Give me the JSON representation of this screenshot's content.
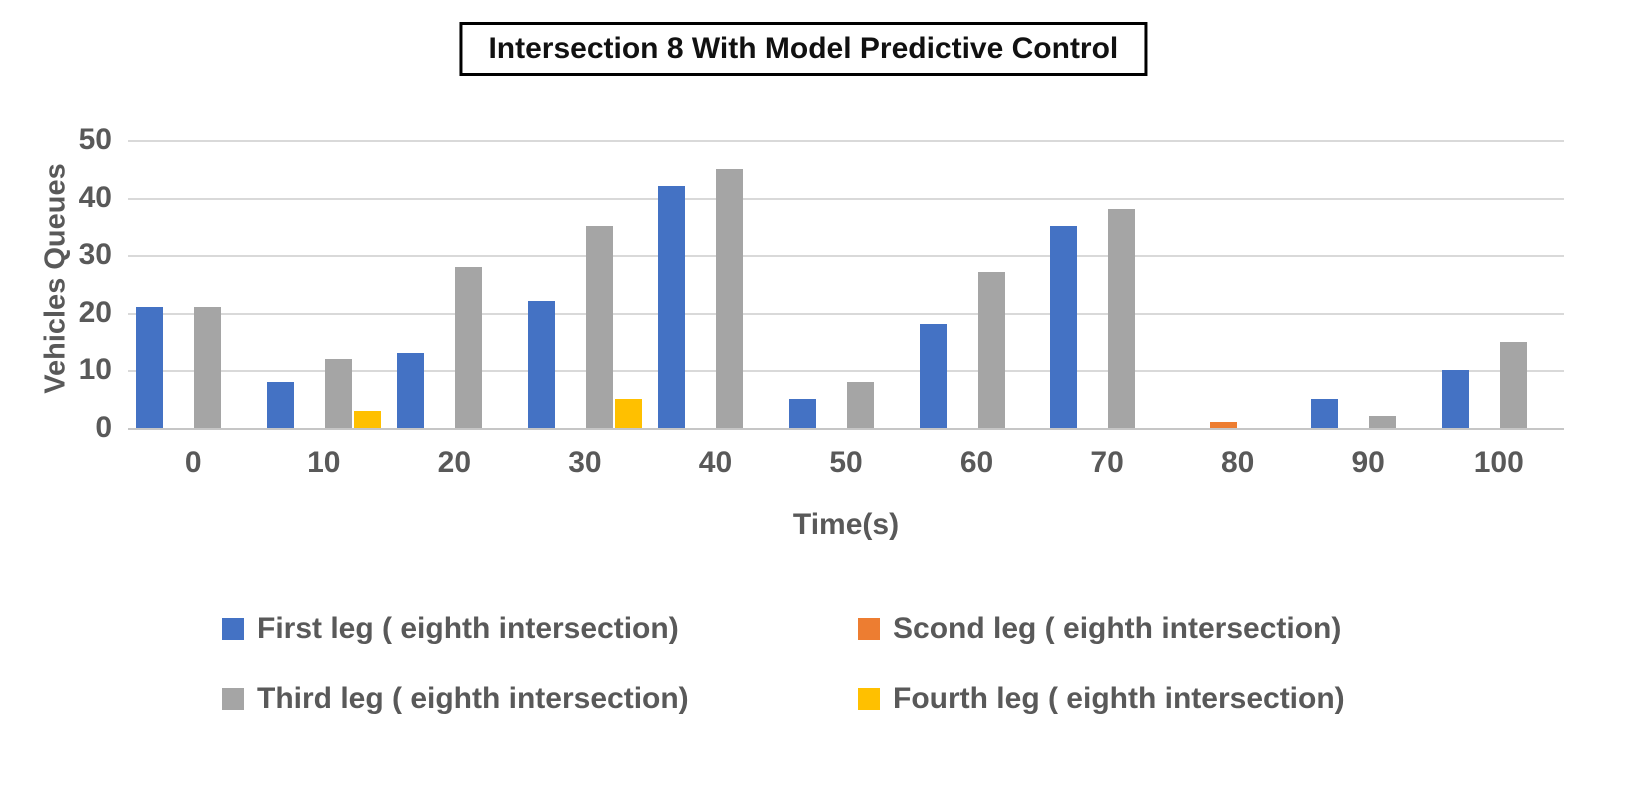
{
  "title": "Intersection 8 With Model Predictive Control",
  "chart_data": {
    "type": "bar",
    "title": "Intersection 8 With Model Predictive Control",
    "xlabel": "Time(s)",
    "ylabel": "Vehicles Queues",
    "ylim": [
      0,
      50
    ],
    "y_tick_step": 10,
    "grid": true,
    "legend_position": "bottom",
    "categories": [
      "0",
      "10",
      "20",
      "30",
      "40",
      "50",
      "60",
      "70",
      "80",
      "90",
      "100"
    ],
    "series": [
      {
        "name": "First leg ( eighth intersection)",
        "color": "#4472C4",
        "values": [
          21,
          8,
          13,
          22,
          42,
          5,
          18,
          35,
          0,
          5,
          10
        ]
      },
      {
        "name": "Scond leg ( eighth intersection)",
        "color": "#ED7D31",
        "values": [
          0,
          0,
          0,
          0,
          0,
          0,
          0,
          0,
          1,
          0,
          0
        ]
      },
      {
        "name": "Third leg ( eighth intersection)",
        "color": "#A5A5A5",
        "values": [
          21,
          12,
          28,
          35,
          45,
          8,
          27,
          38,
          0,
          2,
          15
        ]
      },
      {
        "name": "Fourth leg ( eighth intersection)",
        "color": "#FFC000",
        "values": [
          0,
          3,
          0,
          5,
          0,
          0,
          0,
          0,
          0,
          0,
          0
        ]
      }
    ],
    "y_tick_labels": [
      "0",
      "10",
      "20",
      "30",
      "40",
      "50"
    ]
  },
  "colors": {
    "axis_text": "#595959",
    "gridline": "#D9D9D9",
    "title_text": "#111111",
    "title_border": "#000000"
  }
}
